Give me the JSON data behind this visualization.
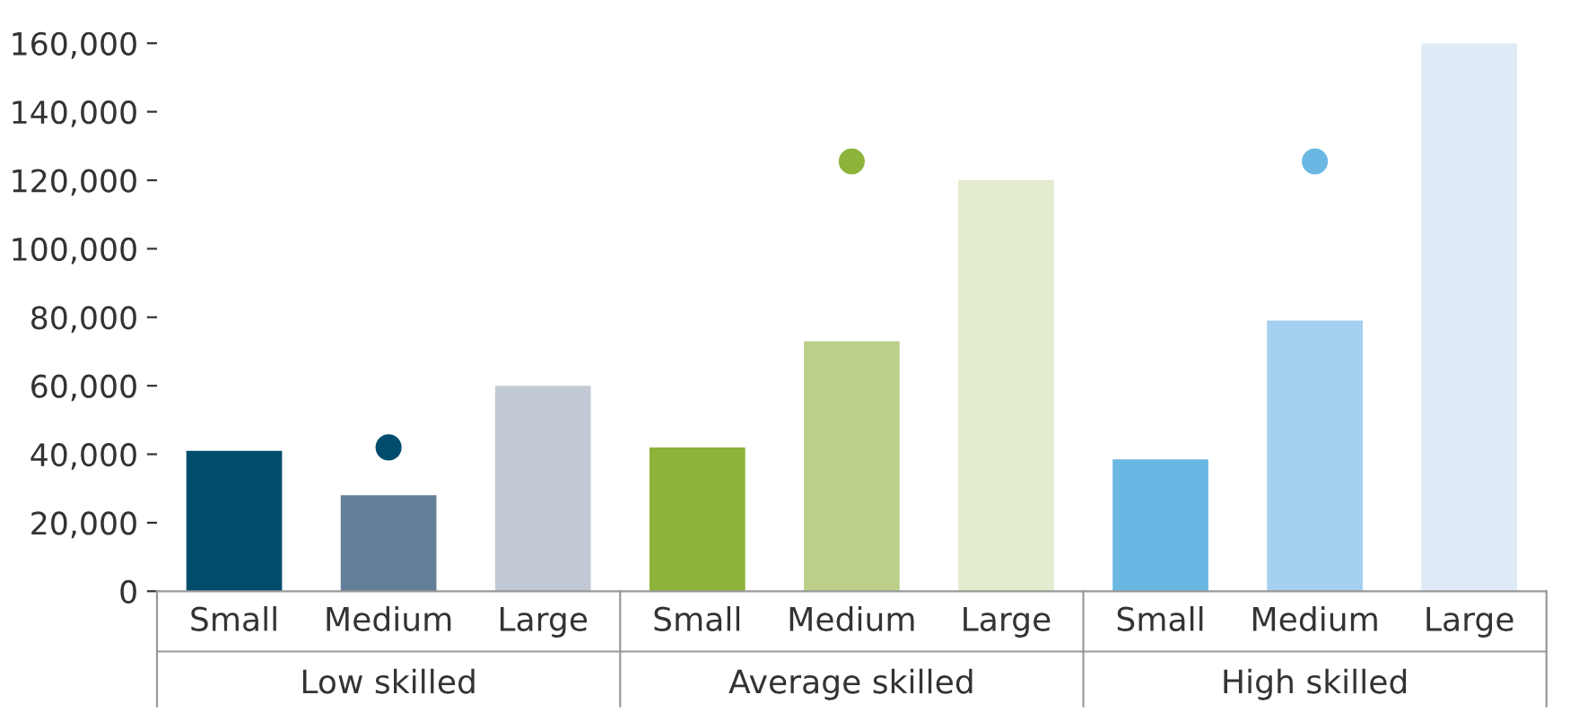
{
  "chart_data": {
    "type": "bar",
    "categories": [
      "Small",
      "Medium",
      "Large",
      "Small",
      "Medium",
      "Large",
      "Small",
      "Medium",
      "Large"
    ],
    "series": [
      {
        "values": [
          41000,
          28000,
          60000,
          42000,
          73000,
          120000,
          38500,
          79000,
          160000
        ],
        "colors": [
          "#004c6d",
          "#647f99",
          "#c1c9d5",
          "#8db33a",
          "#bccf8a",
          "#e2ebcd",
          "#6bb7e4",
          "#a6d0f0",
          "#deebf7"
        ]
      },
      {
        "type": "scatter",
        "values": [
          null,
          42000,
          null,
          null,
          125500,
          null,
          null,
          125500,
          null
        ],
        "colors": [
          null,
          "#004c6d",
          null,
          null,
          "#8db33a",
          null,
          null,
          "#6bb7e4",
          null
        ]
      }
    ],
    "annotations": [
      "Low skilled",
      "Average skilled",
      "High skilled"
    ],
    "ylim": [
      0,
      160000
    ],
    "yticks": [
      0,
      {
        "value": 20000,
        "label": "20,000"
      },
      {
        "value": 40000,
        "label": "40,000"
      },
      {
        "value": 60000,
        "label": "60,000"
      },
      {
        "value": 80000,
        "label": "80,000"
      },
      {
        "value": 100000,
        "label": "100,000"
      },
      {
        "value": 120000,
        "label": "120,000"
      },
      {
        "value": 140000,
        "label": "140,000"
      },
      {
        "value": 160000,
        "label": "160,000"
      }
    ],
    "grid": false,
    "legend": false,
    "marker": "circle"
  }
}
